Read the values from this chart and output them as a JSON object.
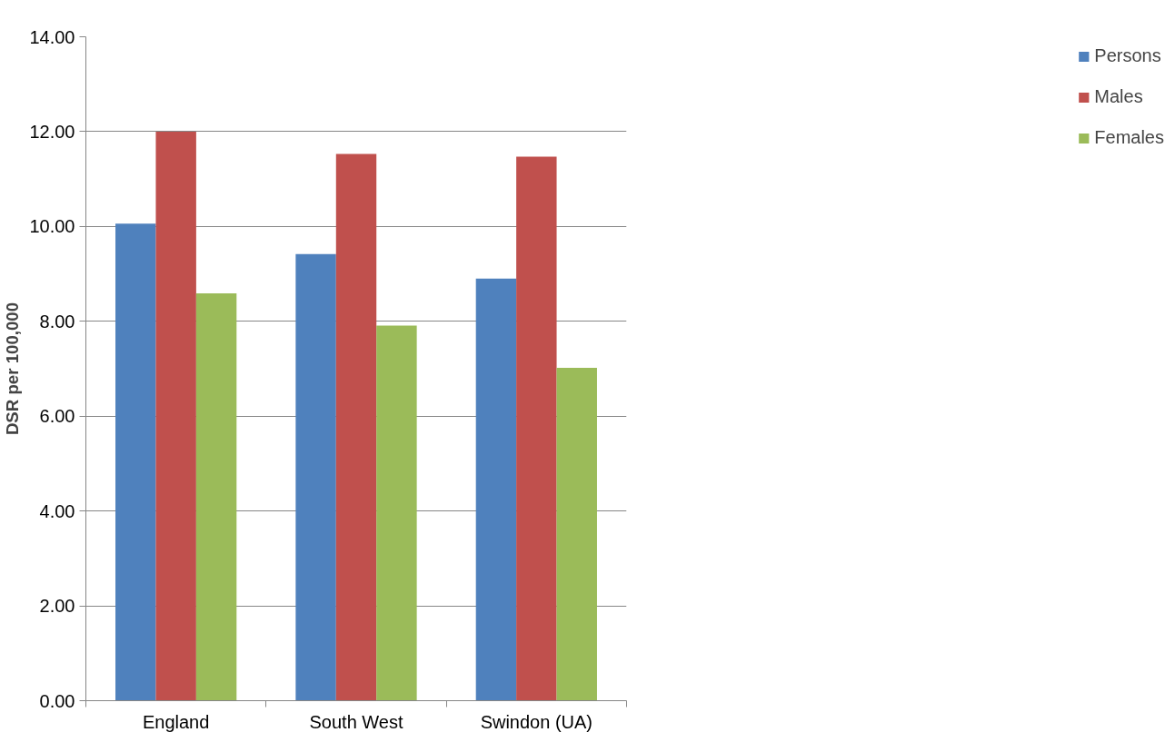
{
  "chart_data": {
    "type": "bar",
    "ylabel": "DSR per 100,000",
    "categories": [
      "England",
      "South West",
      "Swindon (UA)"
    ],
    "series": [
      {
        "name": "Persons",
        "color": "#4f81bd",
        "values": [
          10.06,
          9.42,
          8.9
        ]
      },
      {
        "name": "Males",
        "color": "#c0504d",
        "values": [
          12.0,
          11.53,
          11.47
        ]
      },
      {
        "name": "Females",
        "color": "#9bbb59",
        "values": [
          8.59,
          7.91,
          7.02
        ]
      }
    ],
    "ylim": [
      0,
      14
    ],
    "yticks": [
      {
        "value": 0,
        "label": "0.00"
      },
      {
        "value": 2,
        "label": "2.00"
      },
      {
        "value": 4,
        "label": "4.00"
      },
      {
        "value": 6,
        "label": "6.00"
      },
      {
        "value": 8,
        "label": "8.00"
      },
      {
        "value": 10,
        "label": "10.00"
      },
      {
        "value": 12,
        "label": "12.00"
      },
      {
        "value": 14,
        "label": "14.00"
      }
    ],
    "grid": "y",
    "legend": "right"
  }
}
